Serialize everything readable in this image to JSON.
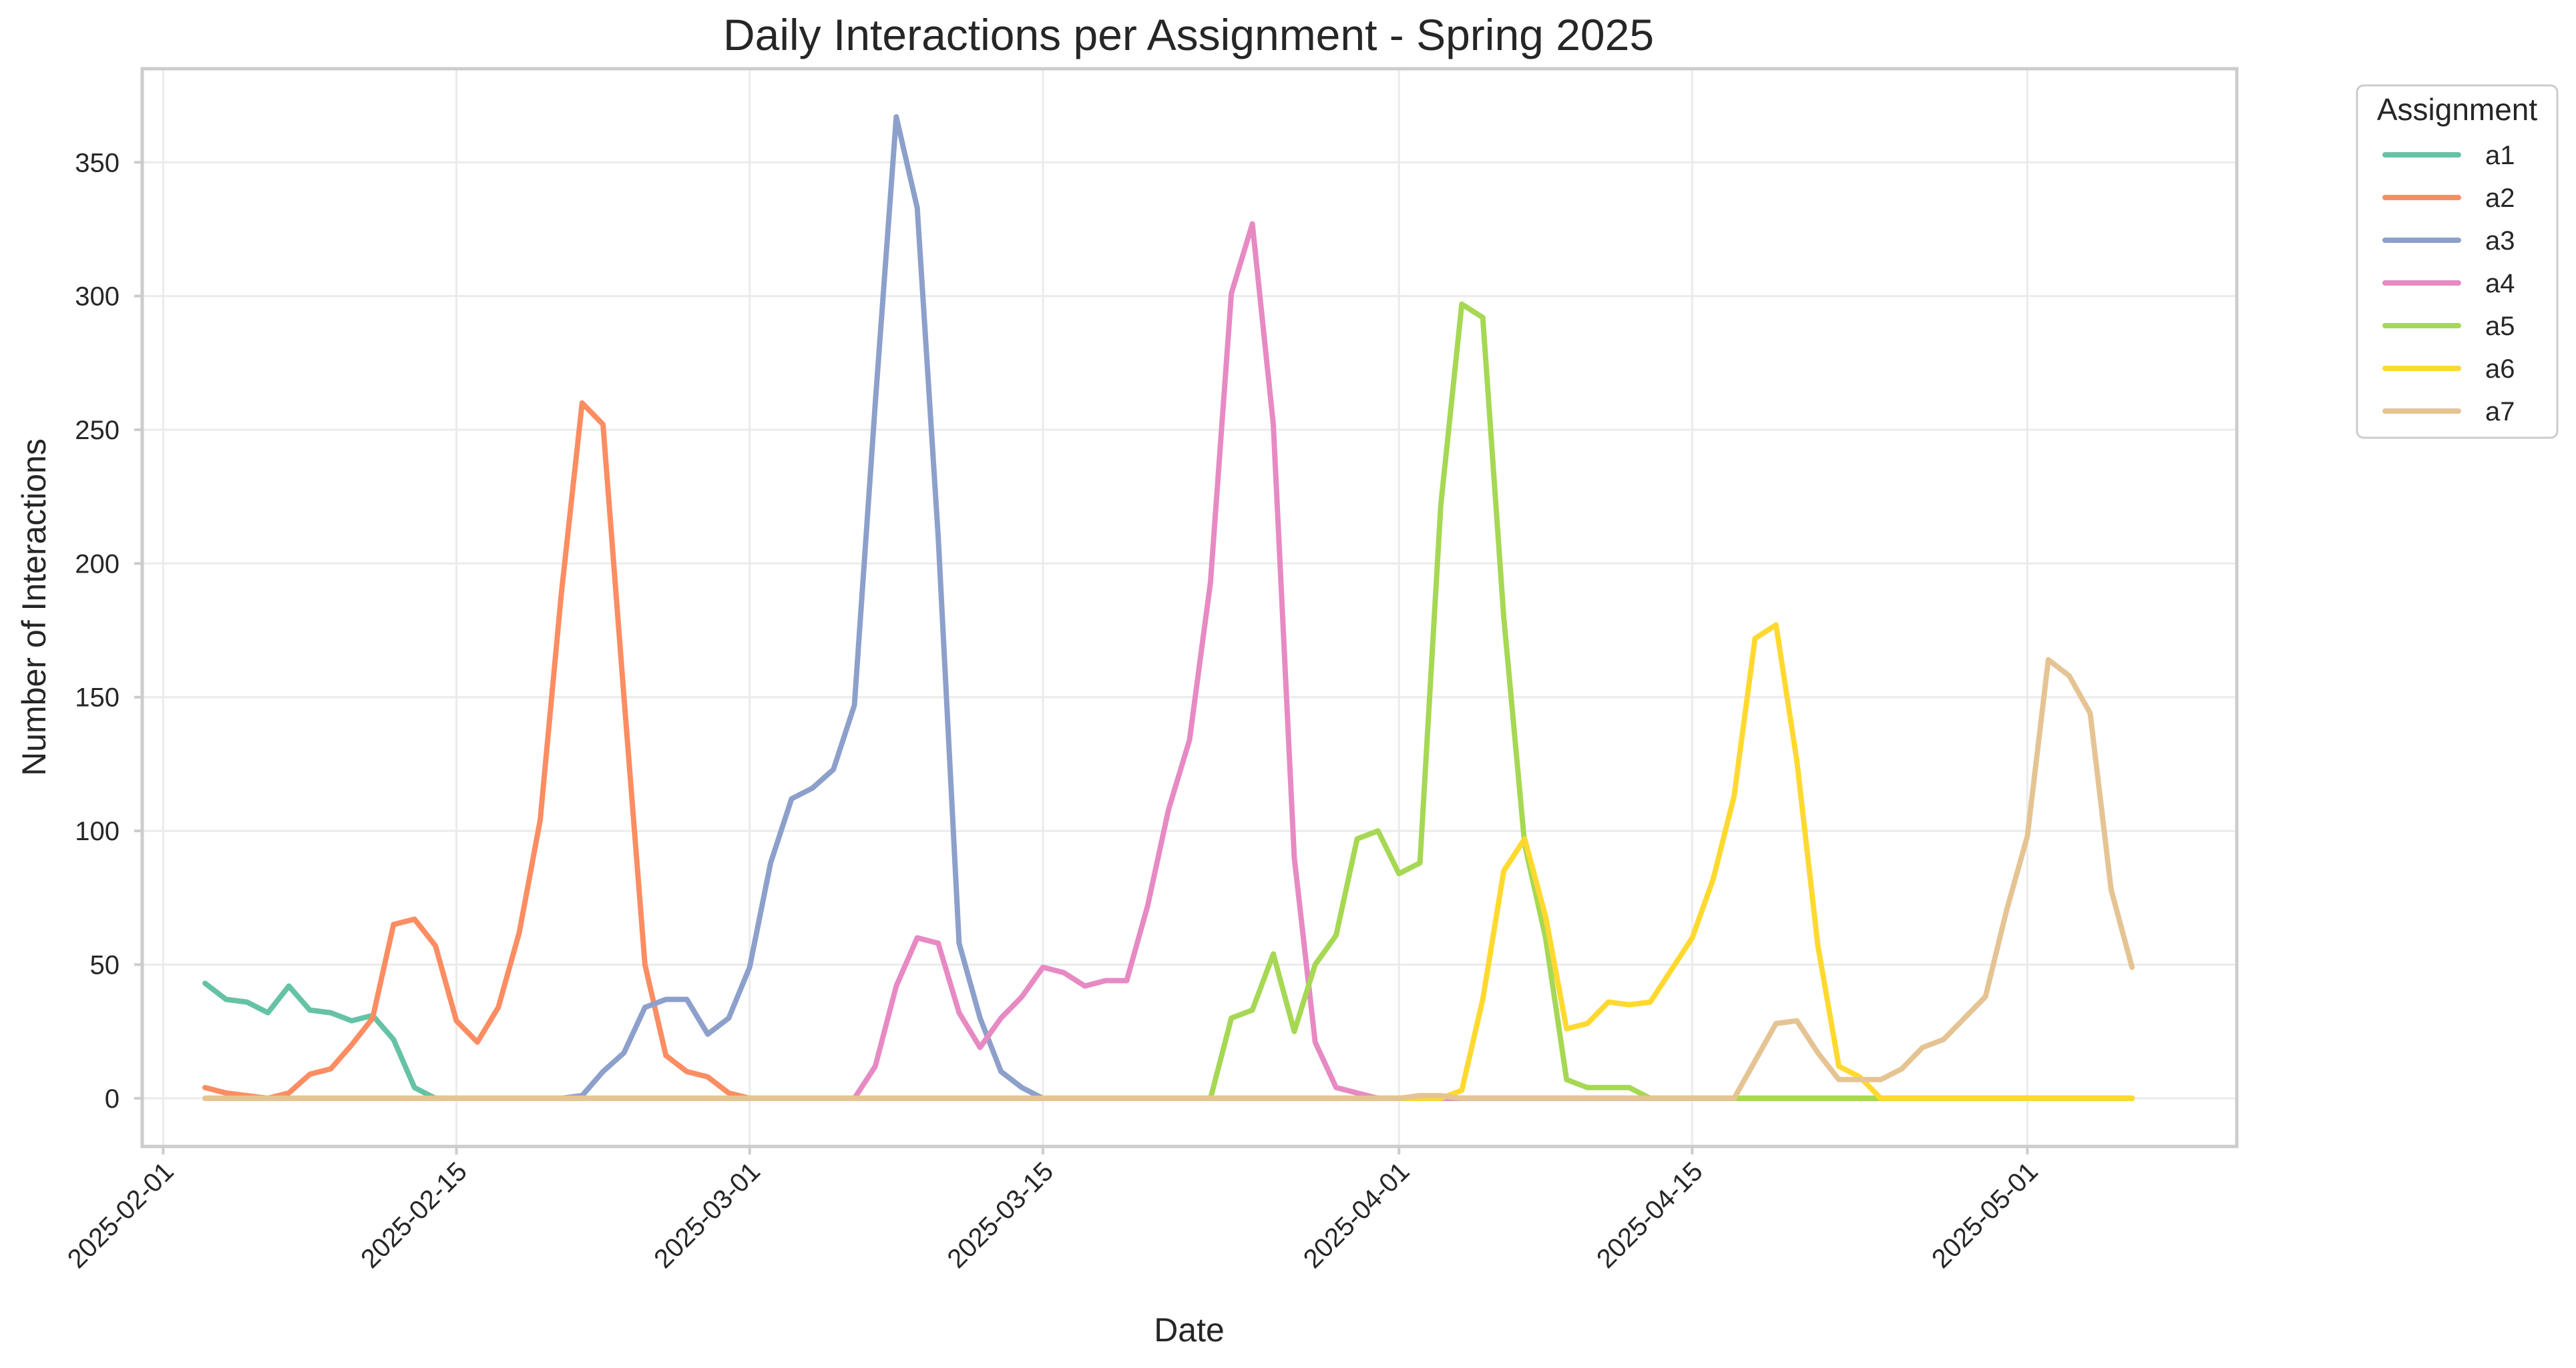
{
  "chart_data": {
    "type": "line",
    "title": "Daily Interactions per Assignment - Spring 2025",
    "xlabel": "Date",
    "ylabel": "Number of Interactions",
    "x_start": "2025-02-03",
    "x_end": "2025-05-06",
    "xlim": [
      "2025-01-31",
      "2025-05-11"
    ],
    "ylim": [
      -18,
      385
    ],
    "x_ticks": [
      {
        "date": "2025-02-01",
        "label": "2025-02-01"
      },
      {
        "date": "2025-02-15",
        "label": "2025-02-15"
      },
      {
        "date": "2025-03-01",
        "label": "2025-03-01"
      },
      {
        "date": "2025-03-15",
        "label": "2025-03-15"
      },
      {
        "date": "2025-04-01",
        "label": "2025-04-01"
      },
      {
        "date": "2025-04-15",
        "label": "2025-04-15"
      },
      {
        "date": "2025-05-01",
        "label": "2025-05-01"
      }
    ],
    "y_ticks": [
      {
        "value": 0,
        "label": "0"
      },
      {
        "value": 50,
        "label": "50"
      },
      {
        "value": 100,
        "label": "100"
      },
      {
        "value": 150,
        "label": "150"
      },
      {
        "value": 200,
        "label": "200"
      },
      {
        "value": 250,
        "label": "250"
      },
      {
        "value": 300,
        "label": "300"
      },
      {
        "value": 350,
        "label": "350"
      }
    ],
    "grid": true,
    "legend": {
      "title": "Assignment",
      "placement": "outside top-right"
    },
    "series": [
      {
        "name": "a1",
        "color": "#66c2a5",
        "start": "2025-02-03",
        "values": [
          43,
          37,
          36,
          32,
          42,
          33,
          32,
          29,
          31,
          22,
          4,
          0,
          0,
          0,
          0,
          0,
          0,
          0,
          0,
          0,
          0,
          0,
          0,
          0,
          0,
          0,
          0,
          0,
          0,
          0,
          0,
          0,
          0,
          0,
          0,
          0,
          0,
          0,
          0,
          0,
          0,
          0,
          0,
          0,
          0,
          0,
          0,
          0,
          0,
          0,
          0,
          0,
          0,
          0,
          0,
          0,
          0,
          0,
          0,
          0,
          0,
          0,
          0,
          0,
          0,
          0,
          0,
          0,
          0,
          0,
          0,
          0,
          0,
          0,
          0,
          0,
          0,
          0,
          0,
          0,
          0,
          0,
          0,
          0,
          0,
          0,
          0,
          0,
          0,
          0,
          0,
          0,
          0
        ]
      },
      {
        "name": "a2",
        "color": "#fc8d62",
        "start": "2025-02-03",
        "values": [
          4,
          2,
          1,
          0,
          2,
          9,
          11,
          20,
          30,
          65,
          67,
          57,
          29,
          21,
          34,
          62,
          104,
          188,
          260,
          252,
          150,
          50,
          16,
          10,
          8,
          2,
          0,
          0,
          0,
          0,
          0,
          0,
          0,
          0,
          0,
          0,
          0,
          0,
          0,
          0,
          0,
          0,
          0,
          0,
          0,
          0,
          0,
          0,
          0,
          0,
          0,
          0,
          0,
          0,
          0,
          0,
          0,
          0,
          0,
          0,
          0,
          0,
          0,
          0,
          0,
          0,
          0,
          0,
          0,
          0,
          0,
          0,
          0,
          0,
          0,
          0,
          0,
          0,
          0,
          0,
          0,
          0,
          0,
          0,
          0,
          0,
          0,
          0,
          0,
          0,
          0,
          0,
          0
        ]
      },
      {
        "name": "a3",
        "color": "#8da0cb",
        "start": "2025-02-03",
        "values": [
          0,
          0,
          0,
          0,
          0,
          0,
          0,
          0,
          0,
          0,
          0,
          0,
          0,
          0,
          0,
          0,
          0,
          0,
          1,
          10,
          17,
          34,
          37,
          37,
          24,
          30,
          49,
          88,
          112,
          116,
          123,
          147,
          260,
          367,
          333,
          210,
          58,
          30,
          10,
          4,
          0,
          0,
          0,
          0,
          0,
          0,
          0,
          0,
          0,
          0,
          0,
          0,
          0,
          0,
          0,
          0,
          0,
          0,
          0,
          0,
          0,
          0,
          0,
          0,
          0,
          0,
          0,
          0,
          0,
          0,
          0,
          0,
          0,
          0,
          0,
          0,
          0,
          0,
          0,
          0,
          0,
          0,
          0,
          0,
          0,
          0,
          0,
          0,
          0,
          0,
          0,
          0,
          0
        ]
      },
      {
        "name": "a4",
        "color": "#e78ac3",
        "start": "2025-02-03",
        "values": [
          0,
          0,
          0,
          0,
          0,
          0,
          0,
          0,
          0,
          0,
          0,
          0,
          0,
          0,
          0,
          0,
          0,
          0,
          0,
          0,
          0,
          0,
          0,
          0,
          0,
          0,
          0,
          0,
          0,
          0,
          0,
          0,
          12,
          42,
          60,
          58,
          32,
          19,
          30,
          38,
          49,
          47,
          42,
          44,
          44,
          72,
          108,
          134,
          193,
          301,
          327,
          252,
          90,
          21,
          4,
          2,
          0,
          0,
          0,
          0,
          0,
          0,
          0,
          0,
          0,
          0,
          0,
          0,
          0,
          0,
          0,
          0,
          0,
          0,
          0,
          0,
          0,
          0,
          0,
          0,
          0,
          0,
          0,
          0,
          0,
          0,
          0,
          0,
          0,
          0,
          0,
          0,
          0
        ]
      },
      {
        "name": "a5",
        "color": "#a6d854",
        "start": "2025-02-03",
        "values": [
          0,
          0,
          0,
          0,
          0,
          0,
          0,
          0,
          0,
          0,
          0,
          0,
          0,
          0,
          0,
          0,
          0,
          0,
          0,
          0,
          0,
          0,
          0,
          0,
          0,
          0,
          0,
          0,
          0,
          0,
          0,
          0,
          0,
          0,
          0,
          0,
          0,
          0,
          0,
          0,
          0,
          0,
          0,
          0,
          0,
          0,
          0,
          0,
          0,
          30,
          33,
          54,
          25,
          50,
          61,
          97,
          100,
          84,
          88,
          222,
          297,
          292,
          180,
          95,
          60,
          7,
          4,
          4,
          4,
          0,
          0,
          0,
          0,
          0,
          0,
          0,
          0,
          0,
          0,
          0,
          0,
          0,
          0,
          0,
          0,
          0,
          0,
          0,
          0,
          0,
          0,
          0,
          0
        ]
      },
      {
        "name": "a6",
        "color": "#ffd92f",
        "start": "2025-02-03",
        "values": [
          0,
          0,
          0,
          0,
          0,
          0,
          0,
          0,
          0,
          0,
          0,
          0,
          0,
          0,
          0,
          0,
          0,
          0,
          0,
          0,
          0,
          0,
          0,
          0,
          0,
          0,
          0,
          0,
          0,
          0,
          0,
          0,
          0,
          0,
          0,
          0,
          0,
          0,
          0,
          0,
          0,
          0,
          0,
          0,
          0,
          0,
          0,
          0,
          0,
          0,
          0,
          0,
          0,
          0,
          0,
          0,
          0,
          0,
          0,
          0,
          3,
          37,
          85,
          97,
          68,
          26,
          28,
          36,
          35,
          36,
          48,
          60,
          82,
          113,
          172,
          177,
          126,
          57,
          12,
          8,
          0,
          0,
          0,
          0,
          0,
          0,
          0,
          0,
          0,
          0,
          0,
          0,
          0
        ]
      },
      {
        "name": "a7",
        "color": "#e5c494",
        "start": "2025-02-03",
        "values": [
          0,
          0,
          0,
          0,
          0,
          0,
          0,
          0,
          0,
          0,
          0,
          0,
          0,
          0,
          0,
          0,
          0,
          0,
          0,
          0,
          0,
          0,
          0,
          0,
          0,
          0,
          0,
          0,
          0,
          0,
          0,
          0,
          0,
          0,
          0,
          0,
          0,
          0,
          0,
          0,
          0,
          0,
          0,
          0,
          0,
          0,
          0,
          0,
          0,
          0,
          0,
          0,
          0,
          0,
          0,
          0,
          0,
          0,
          1,
          1,
          0,
          0,
          0,
          0,
          0,
          0,
          0,
          0,
          0,
          0,
          0,
          0,
          0,
          0,
          14,
          28,
          29,
          17,
          7,
          7,
          7,
          11,
          19,
          22,
          30,
          38,
          70,
          98,
          164,
          158,
          144,
          78,
          49
        ]
      }
    ]
  }
}
